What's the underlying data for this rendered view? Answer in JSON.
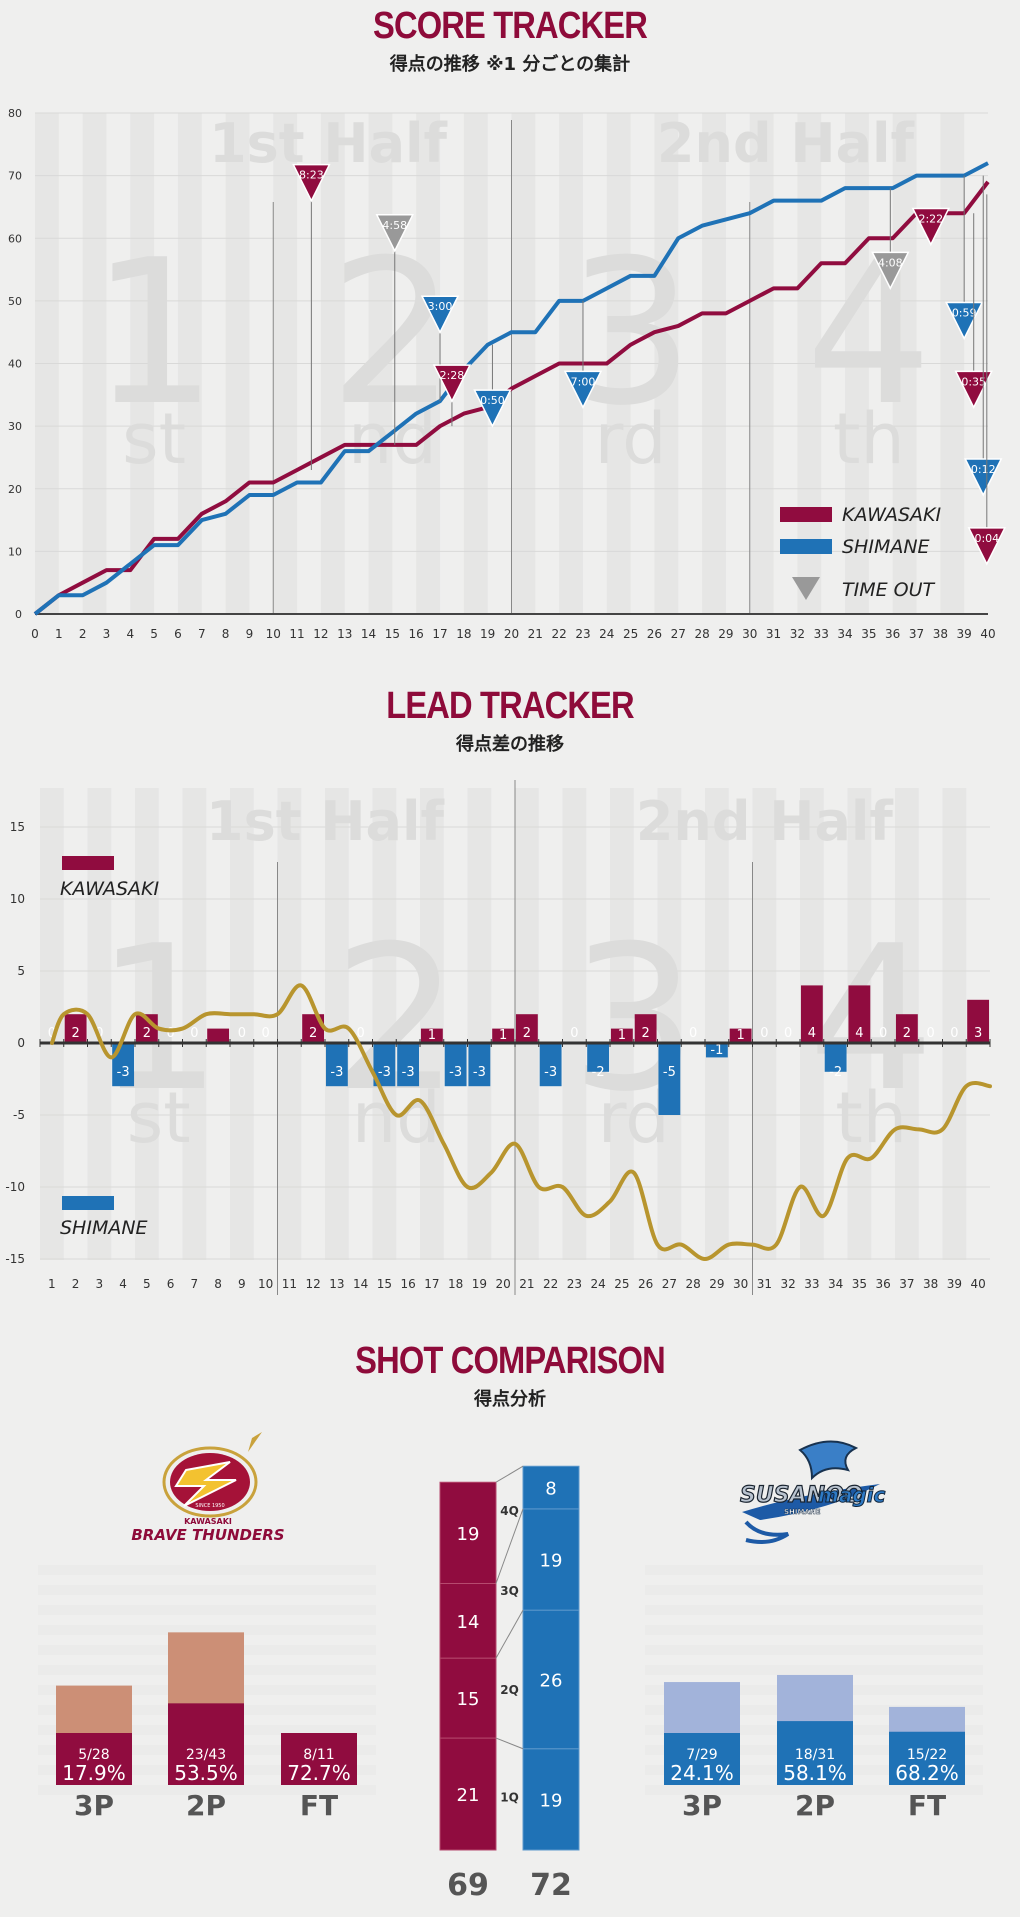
{
  "colors": {
    "kawasaki": "#900c3f",
    "shimane": "#1f72b6",
    "timeout": "#999999",
    "lead_line": "#b8952e",
    "kaw_attempt": "#cc8f76",
    "shi_attempt": "#a2b3da",
    "title": "#8e0b3a"
  },
  "score_tracker": {
    "title": "SCORE TRACKER",
    "subtitle": "得点の推移 ※1 分ごとの集計",
    "half_labels": [
      "1st Half",
      "2nd Half"
    ],
    "quarter_labels": [
      {
        "num": "1",
        "suffix": "st"
      },
      {
        "num": "2",
        "suffix": "nd"
      },
      {
        "num": "3",
        "suffix": "rd"
      },
      {
        "num": "4",
        "suffix": "th"
      }
    ],
    "legend": {
      "kawasaki": "KAWASAKI",
      "shimane": "SHIMANE",
      "timeout": "TIME OUT"
    }
  },
  "lead_tracker": {
    "title": "LEAD TRACKER",
    "subtitle": "得点差の推移",
    "half_labels": [
      "1st Half",
      "2nd Half"
    ],
    "legend": {
      "kawasaki": "KAWASAKI",
      "shimane": "SHIMANE"
    }
  },
  "shot_comparison": {
    "title": "SHOT COMPARISON",
    "subtitle": "得点分析",
    "kawasaki_logo": {
      "small": "KAWASAKI",
      "name": "BRAVE THUNDERS",
      "since": "SINCE 1950"
    },
    "shimane_logo": {
      "name": "SUSANOO",
      "sub": "magic",
      "region": "SHIMANE"
    },
    "categories": [
      "3P",
      "2P",
      "FT"
    ],
    "kawasaki": [
      {
        "made_attempt": "5/28",
        "pct": "17.9%",
        "made": 5,
        "attempts": 28
      },
      {
        "made_attempt": "23/43",
        "pct": "53.5%",
        "made": 23,
        "attempts": 43
      },
      {
        "made_attempt": "8/11",
        "pct": "72.7%",
        "made": 8,
        "attempts": 11
      }
    ],
    "shimane": [
      {
        "made_attempt": "7/29",
        "pct": "24.1%",
        "made": 7,
        "attempts": 29
      },
      {
        "made_attempt": "18/31",
        "pct": "58.1%",
        "made": 18,
        "attempts": 31
      },
      {
        "made_attempt": "15/22",
        "pct": "68.2%",
        "made": 15,
        "attempts": 22
      }
    ],
    "quarter_labels": [
      "1Q",
      "2Q",
      "3Q",
      "4Q"
    ],
    "kawasaki_quarters": [
      21,
      15,
      14,
      19
    ],
    "shimane_quarters": [
      19,
      26,
      19,
      8
    ],
    "kawasaki_total": "69",
    "shimane_total": "72"
  },
  "chart_data": [
    {
      "type": "line",
      "title": "SCORE TRACKER",
      "subtitle": "得点の推移 ※1 分ごとの集計",
      "x": [
        0,
        1,
        2,
        3,
        4,
        5,
        6,
        7,
        8,
        9,
        10,
        11,
        12,
        13,
        14,
        15,
        16,
        17,
        18,
        19,
        20,
        21,
        22,
        23,
        24,
        25,
        26,
        27,
        28,
        29,
        30,
        31,
        32,
        33,
        34,
        35,
        36,
        37,
        38,
        39,
        40
      ],
      "xlim": [
        0,
        40
      ],
      "ylim": [
        0,
        80
      ],
      "yticks": [
        0,
        10,
        20,
        30,
        40,
        50,
        60,
        70,
        80
      ],
      "series": [
        {
          "name": "KAWASAKI",
          "values": [
            0,
            3,
            5,
            7,
            7,
            12,
            12,
            16,
            18,
            21,
            21,
            23,
            25,
            27,
            27,
            27,
            27,
            30,
            32,
            33,
            36,
            38,
            40,
            40,
            40,
            43,
            45,
            46,
            48,
            48,
            50,
            52,
            52,
            56,
            56,
            60,
            60,
            64,
            64,
            64,
            69
          ]
        },
        {
          "name": "SHIMANE",
          "values": [
            0,
            3,
            3,
            5,
            8,
            11,
            11,
            15,
            16,
            19,
            19,
            21,
            21,
            26,
            26,
            29,
            32,
            34,
            39,
            43,
            45,
            45,
            50,
            50,
            52,
            54,
            54,
            60,
            62,
            63,
            64,
            66,
            66,
            66,
            68,
            68,
            68,
            70,
            70,
            70,
            72
          ]
        }
      ],
      "timeouts": [
        {
          "team": "KAWASAKI",
          "label": "8:23",
          "minute": 11.6,
          "score": 23
        },
        {
          "team": "neutral",
          "label": "4:58",
          "minute": 15.1,
          "score": 27
        },
        {
          "team": "SHIMANE",
          "label": "3:00",
          "minute": 17.0,
          "score": 34
        },
        {
          "team": "KAWASAKI",
          "label": "2:28",
          "minute": 17.5,
          "score": 30
        },
        {
          "team": "SHIMANE",
          "label": "0:50",
          "minute": 19.2,
          "score": 43
        },
        {
          "team": "SHIMANE",
          "label": "7:00",
          "minute": 23.0,
          "score": 50
        },
        {
          "team": "neutral",
          "label": "4:08",
          "minute": 35.9,
          "score": 68
        },
        {
          "team": "KAWASAKI",
          "label": "2:22",
          "minute": 37.6,
          "score": 64
        },
        {
          "team": "SHIMANE",
          "label": "0:59",
          "minute": 39.0,
          "score": 70
        },
        {
          "team": "KAWASAKI",
          "label": "0:35",
          "minute": 39.4,
          "score": 64
        },
        {
          "team": "SHIMANE",
          "label": "0:12",
          "minute": 39.8,
          "score": 70
        },
        {
          "team": "KAWASAKI",
          "label": "0:04",
          "minute": 39.95,
          "score": 67
        }
      ],
      "legend": "bottom-right",
      "grid": true
    },
    {
      "type": "bar",
      "title": "LEAD TRACKER",
      "subtitle": "得点差の推移",
      "categories": [
        1,
        2,
        3,
        4,
        5,
        6,
        7,
        8,
        9,
        10,
        11,
        12,
        13,
        14,
        15,
        16,
        17,
        18,
        19,
        20,
        21,
        22,
        23,
        24,
        25,
        26,
        27,
        28,
        29,
        30,
        31,
        32,
        33,
        34,
        35,
        36,
        37,
        38,
        39,
        40
      ],
      "values": [
        0,
        2,
        0,
        -3,
        2,
        0,
        0,
        1,
        0,
        0,
        0,
        2,
        -3,
        0,
        -3,
        -3,
        1,
        -3,
        -3,
        1,
        2,
        -3,
        0,
        -2,
        1,
        2,
        -5,
        0,
        -1,
        1,
        0,
        0,
        4,
        -2,
        4,
        0,
        2,
        0,
        0,
        3
      ],
      "value_labels": [
        "0",
        "2",
        "0",
        "-3",
        "2",
        "0",
        "0",
        "",
        "0",
        "0",
        "",
        "2",
        "-3",
        "0",
        "-3",
        "-3",
        "1",
        "-3",
        "-3",
        "1",
        "2",
        "-3",
        "0",
        "-2",
        "1",
        "2",
        "-5",
        "0",
        "-1",
        "1",
        "0",
        "0",
        "4",
        "-2",
        "4",
        "0",
        "2",
        "0",
        "0",
        "3"
      ],
      "lead_line": {
        "x": [
          0,
          1,
          2,
          3,
          4,
          5,
          6,
          7,
          8,
          9,
          10,
          11,
          12,
          13,
          14,
          15,
          16,
          17,
          18,
          19,
          20,
          21,
          22,
          23,
          24,
          25,
          26,
          27,
          28,
          29,
          30,
          31,
          32,
          33,
          34,
          35,
          36,
          37,
          38,
          39,
          40
        ],
        "values": [
          0,
          2,
          2,
          -1,
          2,
          1,
          1,
          2,
          2,
          2,
          2,
          4,
          1,
          1,
          -2,
          -5,
          -4,
          -7,
          -10,
          -9,
          -7,
          -10,
          -10,
          -12,
          -11,
          -9,
          -14,
          -14,
          -15,
          -14,
          -14,
          -14,
          -10,
          -12,
          -8,
          -8,
          -6,
          -6,
          -6,
          -3,
          -3
        ]
      },
      "ylim": [
        -15,
        17
      ],
      "yticks": [
        15,
        10,
        5,
        0,
        -5,
        -10,
        -15
      ],
      "legend": "left"
    },
    {
      "type": "bar",
      "title": "SHOT COMPARISON",
      "subtitle": "得点分析",
      "categories": [
        "3P",
        "2P",
        "FT"
      ],
      "series": [
        {
          "name": "KAWASAKI",
          "made": [
            5,
            23,
            8
          ],
          "attempts": [
            28,
            43,
            11
          ],
          "pct": [
            17.9,
            53.5,
            72.7
          ]
        },
        {
          "name": "SHIMANE",
          "made": [
            7,
            18,
            15
          ],
          "attempts": [
            29,
            31,
            22
          ],
          "pct": [
            24.1,
            58.1,
            68.2
          ]
        }
      ]
    },
    {
      "type": "bar",
      "categories": [
        "1Q",
        "2Q",
        "3Q",
        "4Q"
      ],
      "series": [
        {
          "name": "KAWASAKI",
          "values": [
            21,
            15,
            14,
            19
          ]
        },
        {
          "name": "SHIMANE",
          "values": [
            19,
            26,
            19,
            8
          ]
        }
      ],
      "totals": [
        69,
        72
      ]
    }
  ]
}
